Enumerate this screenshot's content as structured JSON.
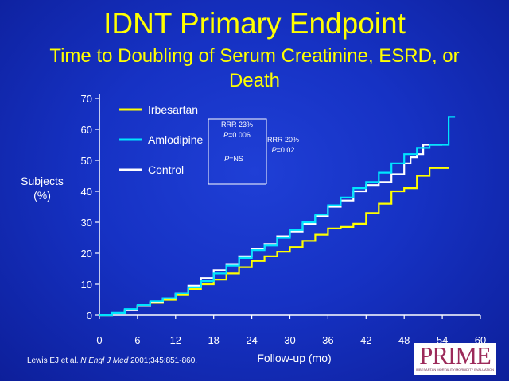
{
  "slide": {
    "title": "IDNT Primary Endpoint",
    "subtitle_line1": "Time to Doubling of Serum Creatinine, ESRD, or",
    "subtitle_line2": "Death",
    "citation_pre": "Lewis EJ et al. ",
    "citation_journal": "N Engl J Med",
    "citation_post": " 2001;345:851-860.",
    "logo": {
      "word": "PRIME",
      "tagline": "IRBESARTAN MORTALITY/MORBIDITY EVALUATION",
      "color": "#9c2a5a"
    }
  },
  "colors": {
    "irbesartan": "#ffff00",
    "amlodipine": "#00e5ff",
    "control": "#ffffff",
    "title": "#ffff00"
  },
  "chart_data": {
    "type": "line",
    "xlabel": "Follow-up (mo)",
    "ylabel_line1": "Subjects",
    "ylabel_line2": "(%)",
    "xlim": [
      0,
      60
    ],
    "ylim": [
      0,
      70
    ],
    "xticks": [
      0,
      6,
      12,
      18,
      24,
      30,
      36,
      42,
      48,
      54,
      60
    ],
    "yticks": [
      0,
      10,
      20,
      30,
      40,
      50,
      60,
      70
    ],
    "legend_position": "top-left",
    "grid": false,
    "series": [
      {
        "name": "Irbesartan",
        "color": "#ffff00",
        "points": [
          [
            0,
            0
          ],
          [
            2,
            0.7
          ],
          [
            4,
            1.8
          ],
          [
            6,
            3
          ],
          [
            8,
            4
          ],
          [
            10,
            5
          ],
          [
            12,
            6.5
          ],
          [
            14,
            8.5
          ],
          [
            16,
            10
          ],
          [
            18,
            11.5
          ],
          [
            20,
            13.5
          ],
          [
            22,
            15.5
          ],
          [
            24,
            17.5
          ],
          [
            26,
            19
          ],
          [
            28,
            20.5
          ],
          [
            30,
            22
          ],
          [
            32,
            24
          ],
          [
            34,
            26
          ],
          [
            36,
            28
          ],
          [
            38,
            28.5
          ],
          [
            40,
            29.5
          ],
          [
            42,
            33
          ],
          [
            44,
            36
          ],
          [
            46,
            40
          ],
          [
            48,
            41
          ],
          [
            50,
            45
          ],
          [
            52,
            47.5
          ],
          [
            55,
            47.5
          ]
        ]
      },
      {
        "name": "Amlodipine",
        "color": "#00e5ff",
        "points": [
          [
            0,
            0
          ],
          [
            2,
            0.8
          ],
          [
            4,
            2
          ],
          [
            6,
            3.3
          ],
          [
            8,
            4.5
          ],
          [
            10,
            5.5
          ],
          [
            12,
            7
          ],
          [
            14,
            9
          ],
          [
            16,
            11
          ],
          [
            18,
            13.5
          ],
          [
            20,
            16
          ],
          [
            22,
            18.5
          ],
          [
            24,
            21
          ],
          [
            26,
            22.5
          ],
          [
            28,
            25
          ],
          [
            30,
            27.5
          ],
          [
            32,
            30
          ],
          [
            34,
            32.5
          ],
          [
            36,
            35.5
          ],
          [
            38,
            38
          ],
          [
            40,
            41
          ],
          [
            42,
            43
          ],
          [
            44,
            46
          ],
          [
            46,
            49
          ],
          [
            48,
            52
          ],
          [
            50,
            54
          ],
          [
            52,
            55
          ],
          [
            54,
            55
          ],
          [
            55,
            64
          ],
          [
            56,
            64
          ]
        ]
      },
      {
        "name": "Control",
        "color": "#ffffff",
        "points": [
          [
            0,
            0
          ],
          [
            2,
            0.6
          ],
          [
            4,
            1.6
          ],
          [
            6,
            3
          ],
          [
            8,
            4.2
          ],
          [
            10,
            5.5
          ],
          [
            12,
            7
          ],
          [
            14,
            9.5
          ],
          [
            16,
            12
          ],
          [
            18,
            14.5
          ],
          [
            20,
            16.5
          ],
          [
            22,
            19
          ],
          [
            24,
            21.5
          ],
          [
            26,
            23
          ],
          [
            28,
            25.5
          ],
          [
            30,
            27
          ],
          [
            32,
            29.5
          ],
          [
            34,
            32
          ],
          [
            36,
            35
          ],
          [
            38,
            37
          ],
          [
            40,
            40
          ],
          [
            42,
            42
          ],
          [
            44,
            43
          ],
          [
            46,
            45.5
          ],
          [
            48,
            49
          ],
          [
            49,
            51
          ],
          [
            50,
            52
          ],
          [
            51,
            55
          ],
          [
            53,
            55
          ],
          [
            54,
            55
          ]
        ]
      }
    ],
    "annotations": [
      {
        "label_prefix": "RRR ",
        "label_value": "23%",
        "line2_prefix": "P",
        "line2_value": "=0.006"
      },
      {
        "label_prefix": "RRR ",
        "label_value": "20%",
        "line2_prefix": "P",
        "line2_value": "=0.02"
      },
      {
        "label_prefix": "P",
        "label_value": "=NS"
      }
    ]
  }
}
